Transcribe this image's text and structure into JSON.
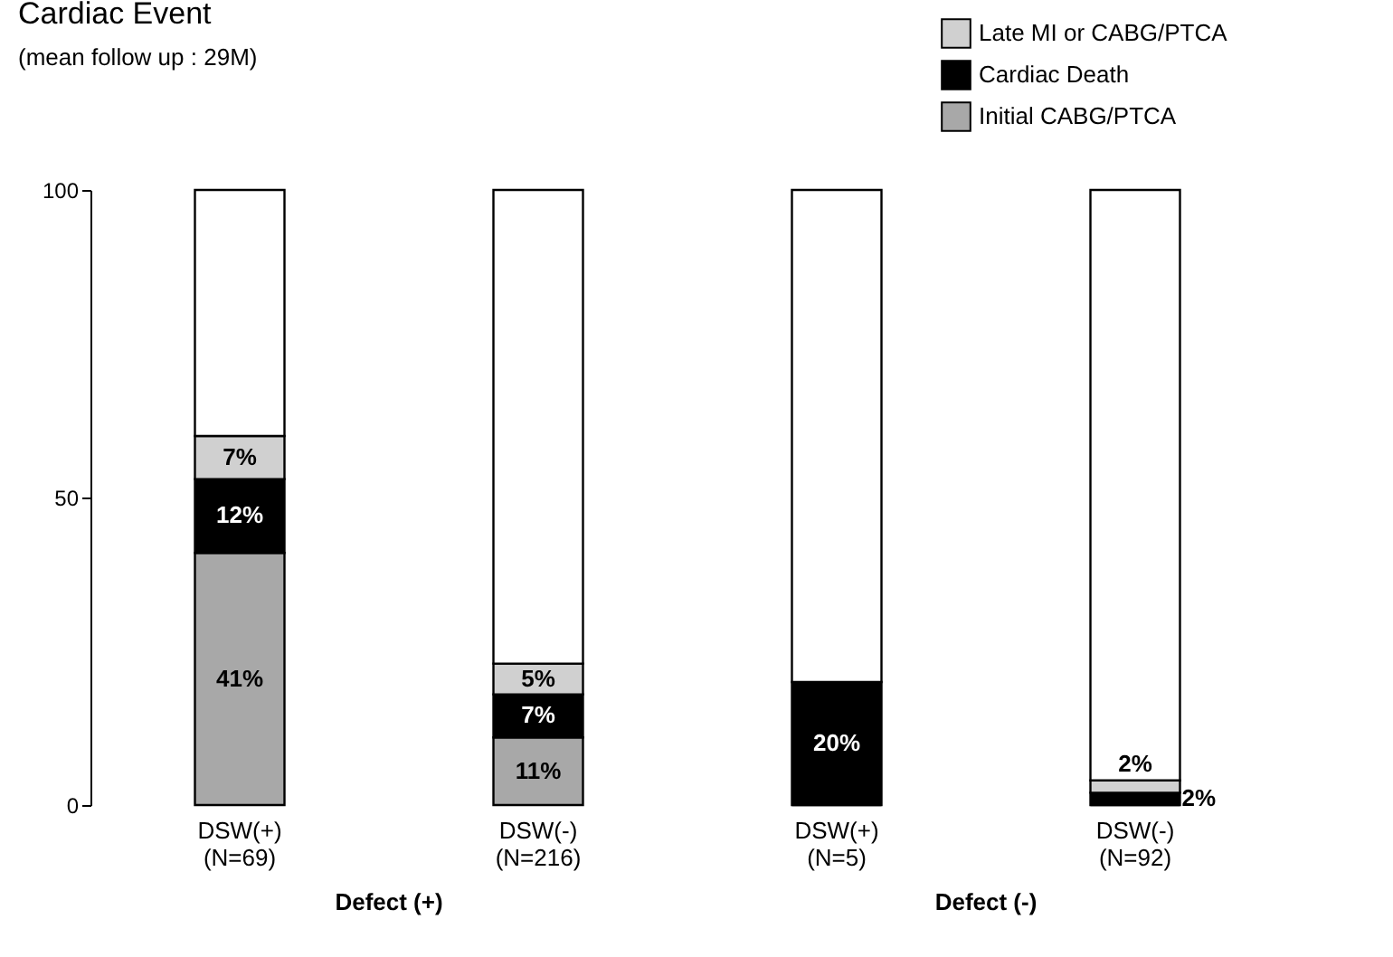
{
  "chart_data": {
    "type": "bar",
    "stacked": true,
    "title": "Cardiac Event",
    "subtitle": "(mean follow up : 29M)",
    "categories": [
      "DSW(+)\n(N=69)",
      "DSW(-)\n(N=216)",
      "DSW(+)\n(N=5)",
      "DSW(-)\n(N=92)"
    ],
    "series": [
      {
        "name": "Initial CABG/PTCA",
        "color": "#a8a8a8",
        "values": [
          41,
          11,
          0,
          0
        ],
        "value_labels": [
          "41%",
          "11%",
          null,
          null
        ]
      },
      {
        "name": "Cardiac Death",
        "color": "#000000",
        "values": [
          12,
          7,
          20,
          2
        ],
        "value_labels": [
          "12%",
          "7%",
          "20%",
          "2%"
        ]
      },
      {
        "name": "Late MI or CABG/PTCA",
        "color": "#d0d0d0",
        "values": [
          7,
          5,
          0,
          2
        ],
        "value_labels": [
          "7%",
          "5%",
          null,
          "2%"
        ]
      },
      {
        "color": "#ffffff",
        "values": [
          40,
          77,
          80,
          96
        ]
      }
    ],
    "annotations": [
      "Defect (+)",
      "Defect (-)"
    ],
    "ylim": [
      0,
      100
    ],
    "yticks": [
      0,
      50,
      100
    ],
    "grid": false,
    "legend": "top right"
  }
}
